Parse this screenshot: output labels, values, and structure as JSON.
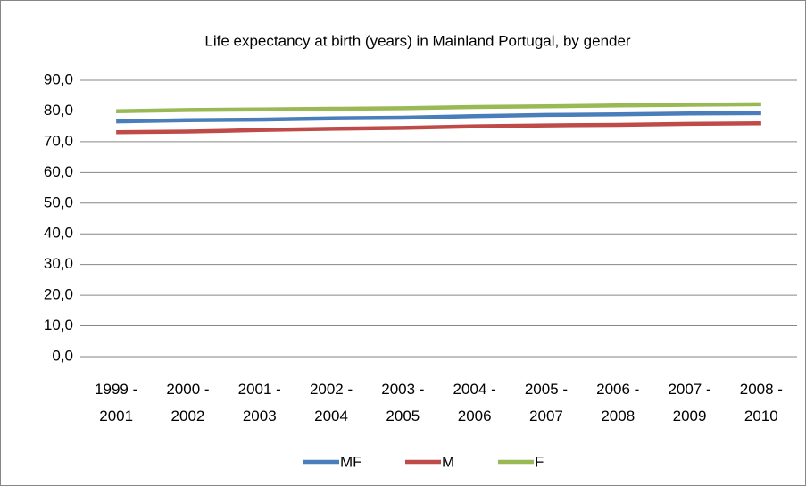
{
  "chart_data": {
    "type": "line",
    "title": "Life expectancy at birth (years) in Mainland Portugal, by gender",
    "categories": [
      "1999 - 2001",
      "2000 - 2002",
      "2001 - 2003",
      "2002 - 2004",
      "2003 - 2005",
      "2004 - 2006",
      "2005 - 2007",
      "2006 - 2008",
      "2007 - 2009",
      "2008 - 2010"
    ],
    "series": [
      {
        "name": "MF",
        "color": "#4a7ebb",
        "values": [
          76.6,
          77.0,
          77.2,
          77.6,
          77.8,
          78.3,
          78.7,
          78.9,
          79.2,
          79.3
        ]
      },
      {
        "name": "M",
        "color": "#be4b48",
        "values": [
          73.1,
          73.3,
          73.8,
          74.2,
          74.5,
          75.0,
          75.3,
          75.5,
          75.8,
          76.0
        ]
      },
      {
        "name": "F",
        "color": "#98b954",
        "values": [
          79.9,
          80.3,
          80.5,
          80.7,
          80.9,
          81.3,
          81.5,
          81.8,
          82.0,
          82.2
        ]
      }
    ],
    "ylim": [
      0,
      90
    ],
    "yticks": [
      {
        "value": 0,
        "label": "0,0"
      },
      {
        "value": 10,
        "label": "10,0"
      },
      {
        "value": 20,
        "label": "20,0"
      },
      {
        "value": 30,
        "label": "30,0"
      },
      {
        "value": 40,
        "label": "40,0"
      },
      {
        "value": 50,
        "label": "50,0"
      },
      {
        "value": 60,
        "label": "60,0"
      },
      {
        "value": 70,
        "label": "70,0"
      },
      {
        "value": 80,
        "label": "80,0"
      },
      {
        "value": 90,
        "label": "90,0"
      }
    ],
    "grid": true,
    "legend": "bottom"
  }
}
